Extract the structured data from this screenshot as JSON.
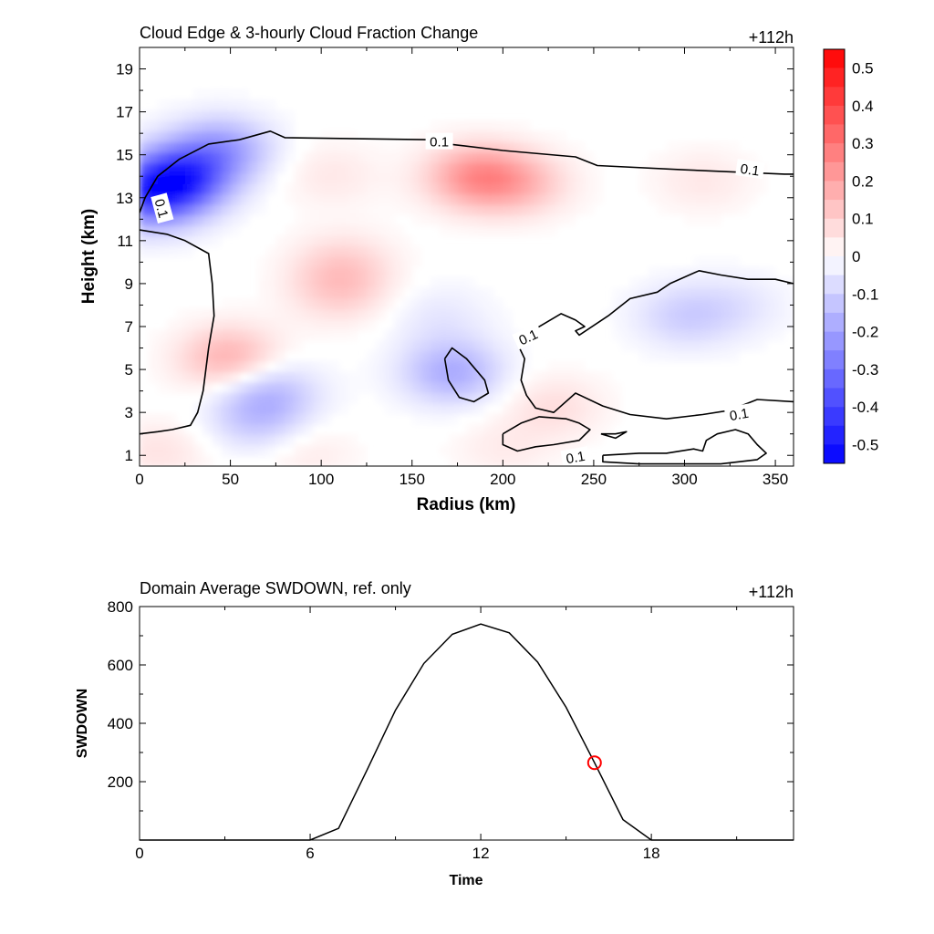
{
  "chart_data": [
    {
      "type": "heatmap",
      "title": "Cloud Edge & 3-hourly Cloud Fraction Change",
      "time_label": "+112h",
      "xlabel": "Radius (km)",
      "ylabel": "Height (km)",
      "xlim": [
        0,
        360
      ],
      "ylim": [
        0.5,
        20
      ],
      "xticks": [
        0,
        50,
        100,
        150,
        200,
        250,
        300,
        350
      ],
      "yticks": [
        1,
        3,
        5,
        7,
        9,
        11,
        13,
        15,
        17,
        19
      ],
      "colorbar": {
        "min": -0.55,
        "max": 0.55,
        "step": 0.05,
        "ticks": [
          "0.5",
          "0.4",
          "0.3",
          "0.2",
          "0.1",
          "0",
          "-0.1",
          "-0.2",
          "-0.3",
          "-0.4",
          "-0.5"
        ],
        "tick_values": [
          0.5,
          0.4,
          0.3,
          0.2,
          0.1,
          0,
          -0.1,
          -0.2,
          -0.3,
          -0.4,
          -0.5
        ],
        "positive_color": "#ff0000",
        "negative_color": "#0000ff",
        "zero_color": "#ffffff"
      },
      "anomalies": [
        {
          "x": 20,
          "y": 13.9,
          "value": -0.42
        },
        {
          "x": 45,
          "y": 15.3,
          "value": -0.2
        },
        {
          "x": 5,
          "y": 12.9,
          "value": -0.25
        },
        {
          "x": 185,
          "y": 14.0,
          "value": 0.22
        },
        {
          "x": 210,
          "y": 13.7,
          "value": 0.12
        },
        {
          "x": 105,
          "y": 14.1,
          "value": 0.05
        },
        {
          "x": 310,
          "y": 13.8,
          "value": 0.05
        },
        {
          "x": 50,
          "y": 5.5,
          "value": 0.18
        },
        {
          "x": 110,
          "y": 8.7,
          "value": 0.1
        },
        {
          "x": 112,
          "y": 10.0,
          "value": 0.08
        },
        {
          "x": 70,
          "y": 4.0,
          "value": -0.15
        },
        {
          "x": 65,
          "y": 2.5,
          "value": -0.1
        },
        {
          "x": 172,
          "y": 4.9,
          "value": -0.18
        },
        {
          "x": 165,
          "y": 7.5,
          "value": -0.05
        },
        {
          "x": 300,
          "y": 7.5,
          "value": -0.1
        },
        {
          "x": 330,
          "y": 8.0,
          "value": -0.05
        },
        {
          "x": 228,
          "y": 3.3,
          "value": 0.07
        },
        {
          "x": 12,
          "y": 1.2,
          "value": 0.06
        },
        {
          "x": 90,
          "y": 1.2,
          "value": 0.05
        },
        {
          "x": 200,
          "y": 1.3,
          "value": 0.04
        }
      ],
      "contour_level": "0.1",
      "contour_labels": [
        {
          "x": 165,
          "y": 15.6,
          "text": "0.1",
          "angle": 0
        },
        {
          "x": 336,
          "y": 14.3,
          "text": "0.1",
          "angle": 8
        },
        {
          "x": 12,
          "y": 12.5,
          "text": "0.1",
          "angle": 75
        },
        {
          "x": 214,
          "y": 6.5,
          "text": "0.1",
          "angle": -25
        },
        {
          "x": 330,
          "y": 2.9,
          "text": "0.1",
          "angle": -10
        },
        {
          "x": 240,
          "y": 0.9,
          "text": "0.1",
          "angle": -10
        }
      ],
      "contours": [
        [
          [
            0,
            12.3
          ],
          [
            3,
            13.0
          ],
          [
            10,
            14.0
          ],
          [
            22,
            14.8
          ],
          [
            38,
            15.5
          ],
          [
            55,
            15.7
          ],
          [
            72,
            16.1
          ],
          [
            80,
            15.8
          ],
          [
            160,
            15.7
          ],
          [
            170,
            15.5
          ],
          [
            200,
            15.2
          ],
          [
            240,
            14.9
          ],
          [
            252,
            14.5
          ],
          [
            300,
            14.3
          ],
          [
            355,
            14.1
          ],
          [
            360,
            14.1
          ]
        ],
        [
          [
            0,
            11.5
          ],
          [
            15,
            11.3
          ],
          [
            25,
            11.0
          ],
          [
            38,
            10.4
          ],
          [
            40,
            9.0
          ],
          [
            41,
            7.5
          ],
          [
            38,
            6.0
          ],
          [
            35,
            4.0
          ],
          [
            32,
            3.0
          ],
          [
            28,
            2.4
          ],
          [
            18,
            2.2
          ],
          [
            10,
            2.1
          ],
          [
            0,
            2.0
          ]
        ],
        [
          [
            168,
            5.5
          ],
          [
            172,
            6.0
          ],
          [
            180,
            5.5
          ],
          [
            190,
            4.5
          ],
          [
            192,
            3.9
          ],
          [
            184,
            3.5
          ],
          [
            176,
            3.7
          ],
          [
            170,
            4.5
          ],
          [
            168,
            5.5
          ]
        ],
        [
          [
            208,
            6.2
          ],
          [
            212,
            5.5
          ],
          [
            210,
            4.5
          ],
          [
            213,
            3.8
          ],
          [
            218,
            3.2
          ],
          [
            228,
            3.0
          ],
          [
            240,
            3.9
          ],
          [
            255,
            3.3
          ],
          [
            270,
            2.9
          ],
          [
            290,
            2.7
          ],
          [
            310,
            2.9
          ],
          [
            325,
            3.1
          ],
          [
            340,
            3.6
          ],
          [
            360,
            3.5
          ]
        ],
        [
          [
            208,
            6.2
          ],
          [
            218,
            6.9
          ],
          [
            232,
            7.6
          ],
          [
            240,
            7.3
          ],
          [
            245,
            7.0
          ],
          [
            240,
            6.8
          ],
          [
            242,
            6.6
          ],
          [
            258,
            7.5
          ],
          [
            270,
            8.3
          ],
          [
            285,
            8.6
          ],
          [
            292,
            9.0
          ],
          [
            308,
            9.6
          ],
          [
            320,
            9.4
          ],
          [
            335,
            9.2
          ],
          [
            350,
            9.2
          ],
          [
            360,
            9.0
          ]
        ],
        [
          [
            200,
            2.0
          ],
          [
            210,
            2.5
          ],
          [
            220,
            2.8
          ],
          [
            235,
            2.7
          ],
          [
            242,
            2.5
          ],
          [
            248,
            2.2
          ],
          [
            242,
            1.7
          ],
          [
            228,
            1.5
          ],
          [
            218,
            1.4
          ],
          [
            208,
            1.2
          ],
          [
            200,
            1.5
          ],
          [
            200,
            2.0
          ]
        ],
        [
          [
            255,
            1.0
          ],
          [
            275,
            1.1
          ],
          [
            290,
            1.1
          ],
          [
            305,
            1.3
          ],
          [
            310,
            1.2
          ],
          [
            312,
            1.7
          ],
          [
            318,
            2.0
          ],
          [
            328,
            2.2
          ],
          [
            335,
            2.0
          ],
          [
            340,
            1.5
          ],
          [
            345,
            1.1
          ],
          [
            340,
            0.8
          ],
          [
            320,
            0.6
          ],
          [
            300,
            0.6
          ],
          [
            275,
            0.6
          ],
          [
            255,
            0.7
          ],
          [
            255,
            1.0
          ]
        ],
        [
          [
            254,
            2.0
          ],
          [
            262,
            2.0
          ],
          [
            268,
            2.1
          ],
          [
            262,
            1.8
          ],
          [
            254,
            2.0
          ]
        ]
      ]
    },
    {
      "type": "line",
      "title": "Domain Average SWDOWN, ref. only",
      "time_label": "+112h",
      "xlabel": "Time",
      "ylabel": "SWDOWN",
      "xlim": [
        0,
        23
      ],
      "ylim": [
        0,
        800
      ],
      "xticks": [
        0,
        6,
        12,
        18
      ],
      "yticks": [
        200,
        400,
        600,
        800
      ],
      "series": [
        {
          "x": [
            0,
            1,
            2,
            3,
            4,
            5,
            6,
            7,
            8,
            9,
            10,
            11,
            12,
            13,
            14,
            15,
            16,
            17,
            18,
            19,
            20,
            21,
            22,
            23
          ],
          "values": [
            0,
            0,
            0,
            0,
            0,
            0,
            0,
            40,
            240,
            445,
            605,
            705,
            740,
            710,
            610,
            455,
            265,
            70,
            0,
            0,
            0,
            0,
            0,
            0
          ]
        }
      ],
      "marker": {
        "x": 16,
        "y": 265,
        "color": "#ff0000"
      }
    }
  ]
}
